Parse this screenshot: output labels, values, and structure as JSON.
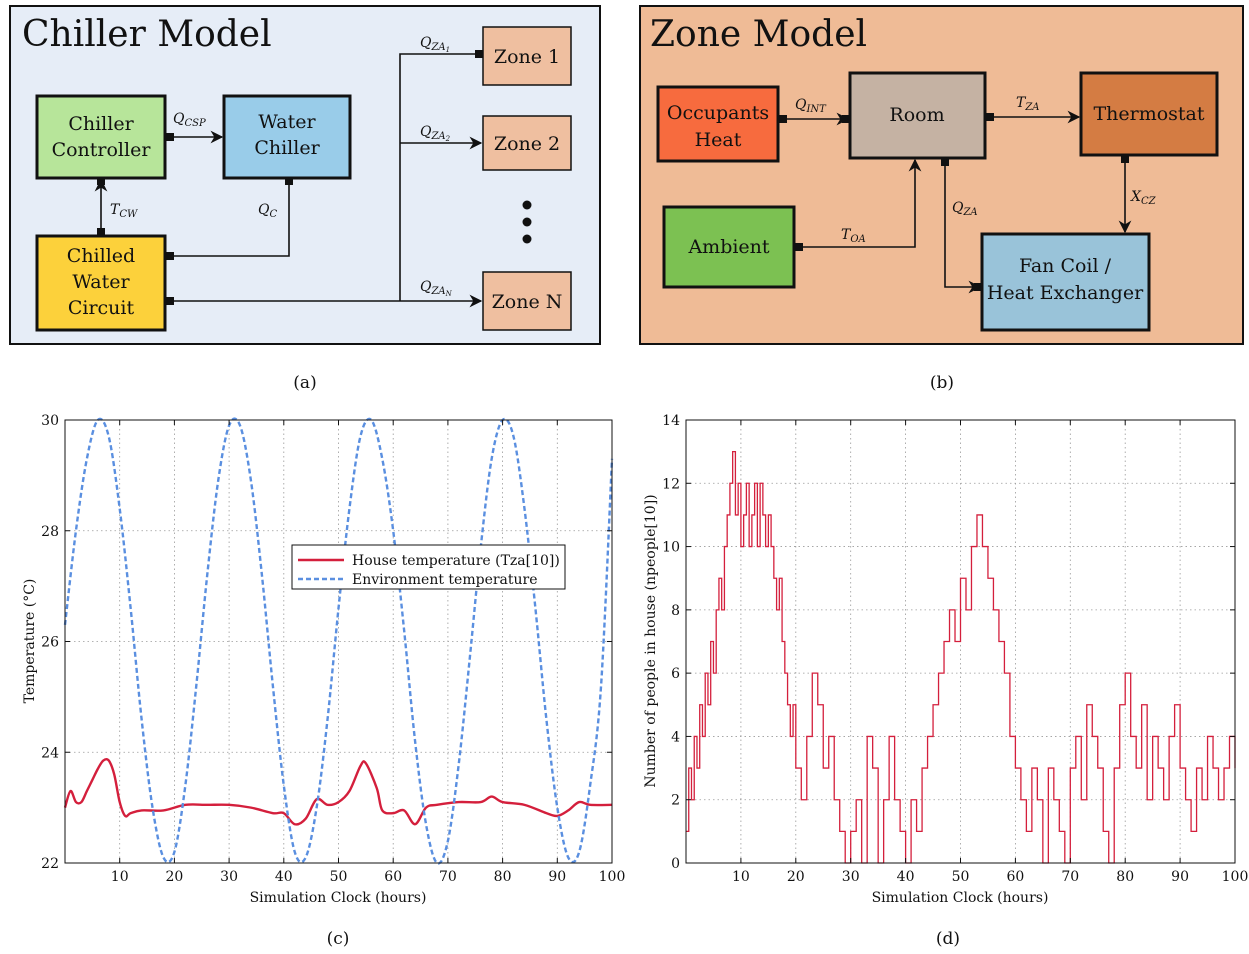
{
  "panel_a": {
    "title": "Chiller Model",
    "caption": "(a)",
    "boxes": {
      "chiller_controller": [
        "Chiller",
        "Controller"
      ],
      "water_chiller": [
        "Water",
        "Chiller"
      ],
      "chilled_water": [
        "Chilled",
        "Water",
        "Circuit"
      ],
      "zone1": "Zone 1",
      "zone2": "Zone 2",
      "zoneN": "Zone N"
    },
    "signals": {
      "q_csp": {
        "main": "Q",
        "sub": "CSP"
      },
      "t_cw": {
        "main": "T",
        "sub": "CW"
      },
      "q_c": {
        "main": "Q",
        "sub": "C"
      },
      "q_za1": {
        "main": "Q",
        "sub": "ZA",
        "subsub": "1"
      },
      "q_za2": {
        "main": "Q",
        "sub": "ZA",
        "subsub": "2"
      },
      "q_zan": {
        "main": "Q",
        "sub": "ZA",
        "subsub": "N"
      }
    }
  },
  "panel_b": {
    "title": "Zone Model",
    "caption": "(b)",
    "boxes": {
      "occupants": [
        "Occupants",
        "Heat"
      ],
      "room": "Room",
      "thermostat": "Thermostat",
      "ambient": "Ambient",
      "fancoil": [
        "Fan Coil /",
        "Heat Exchanger"
      ]
    },
    "signals": {
      "q_int": {
        "main": "Q",
        "sub": "INT"
      },
      "t_za": {
        "main": "T",
        "sub": "ZA"
      },
      "x_cz": {
        "main": "X",
        "sub": "CZ"
      },
      "q_za": {
        "main": "Q",
        "sub": "ZA"
      },
      "t_oa": {
        "main": "T",
        "sub": "OA"
      }
    }
  },
  "panel_c": {
    "caption": "(c)",
    "chart_data": {
      "type": "line",
      "xlabel": "Simulation Clock (hours)",
      "ylabel": "Temperature (°C)",
      "xlim": [
        0,
        100
      ],
      "ylim": [
        22,
        30
      ],
      "xticks": [
        "10",
        "20",
        "30",
        "40",
        "50",
        "60",
        "70",
        "80",
        "90",
        "100"
      ],
      "yticks": [
        "22",
        "24",
        "26",
        "28",
        "30"
      ],
      "grid": true,
      "legend_position": "center-right",
      "series": [
        {
          "name": "House temperature (Tza[10])",
          "color": "#d41f3c",
          "style": "solid",
          "x": [
            0,
            1,
            2,
            3,
            4,
            5,
            6,
            7,
            8,
            9,
            10,
            11,
            12,
            14,
            18,
            22,
            26,
            30,
            34,
            38,
            40,
            42,
            44,
            46,
            48,
            50,
            52,
            54,
            55,
            57,
            58,
            60,
            62,
            64,
            66,
            68,
            72,
            76,
            78,
            80,
            84,
            88,
            90,
            92,
            94,
            96,
            100
          ],
          "y": [
            23.0,
            23.3,
            23.1,
            23.1,
            23.3,
            23.5,
            23.7,
            23.85,
            23.85,
            23.6,
            23.1,
            22.85,
            22.9,
            22.95,
            22.95,
            23.05,
            23.05,
            23.05,
            23.0,
            22.9,
            22.9,
            22.7,
            22.8,
            23.15,
            23.05,
            23.1,
            23.3,
            23.75,
            23.8,
            23.35,
            22.95,
            22.9,
            22.95,
            22.7,
            23.0,
            23.05,
            23.1,
            23.1,
            23.2,
            23.1,
            23.05,
            22.9,
            22.85,
            22.95,
            23.1,
            23.05,
            23.05
          ]
        },
        {
          "name": "Environment temperature",
          "color": "#5a8fe0",
          "style": "dashed",
          "x": [
            0,
            2,
            4,
            6,
            8,
            10,
            12,
            14,
            16,
            18,
            20,
            22,
            24,
            26,
            28,
            30,
            32,
            34,
            36,
            38,
            40,
            42,
            44,
            46,
            48,
            50,
            52,
            54,
            56,
            58,
            60,
            62,
            64,
            66,
            68,
            70,
            72,
            74,
            76,
            78,
            80,
            82,
            84,
            86,
            88,
            90,
            92,
            94,
            96,
            98,
            100
          ],
          "y": [
            26.3,
            28.0,
            29.3,
            30.0,
            29.7,
            28.4,
            26.6,
            24.6,
            23.0,
            22.1,
            22.2,
            23.4,
            25.2,
            27.2,
            28.9,
            29.9,
            29.9,
            28.9,
            27.2,
            25.2,
            23.4,
            22.2,
            22.1,
            23.0,
            24.6,
            26.6,
            28.4,
            29.7,
            30.0,
            29.3,
            28.0,
            26.2,
            24.2,
            22.7,
            22.0,
            22.4,
            23.8,
            25.7,
            27.7,
            29.3,
            30.0,
            29.7,
            28.4,
            26.6,
            24.6,
            23.0,
            22.1,
            22.2,
            23.4,
            25.2,
            29.3
          ]
        }
      ]
    }
  },
  "panel_d": {
    "caption": "(d)",
    "chart_data": {
      "type": "line",
      "xlabel": "Simulation Clock (hours)",
      "ylabel": "Number of people in house (npeople[10])",
      "xlim": [
        0,
        100
      ],
      "ylim": [
        0,
        14
      ],
      "xticks": [
        "10",
        "20",
        "30",
        "40",
        "50",
        "60",
        "70",
        "80",
        "90",
        "100"
      ],
      "yticks": [
        "0",
        "2",
        "4",
        "6",
        "8",
        "10",
        "12",
        "14"
      ],
      "grid": true,
      "series": [
        {
          "name": "",
          "color": "#d41f3c",
          "style": "solid",
          "x": [
            0,
            0.5,
            1,
            1.5,
            2,
            2.5,
            3,
            3.5,
            4,
            4.5,
            5,
            5.5,
            6,
            6.5,
            7,
            7.5,
            8,
            8.5,
            9,
            9.5,
            10,
            10.5,
            11,
            11.5,
            12,
            12.5,
            13,
            13.5,
            14,
            14.5,
            15,
            15.5,
            16,
            16.5,
            17,
            17.5,
            18,
            18.5,
            19,
            19.5,
            20,
            21,
            22,
            23,
            24,
            25,
            26,
            27,
            28,
            29,
            30,
            31,
            32,
            33,
            34,
            35,
            36,
            37,
            38,
            39,
            40,
            41,
            42,
            43,
            44,
            45,
            46,
            47,
            48,
            49,
            50,
            51,
            52,
            53,
            54,
            55,
            56,
            57,
            58,
            59,
            60,
            61,
            62,
            63,
            64,
            65,
            66,
            67,
            68,
            69,
            70,
            71,
            72,
            73,
            74,
            75,
            76,
            77,
            78,
            79,
            80,
            81,
            82,
            83,
            84,
            85,
            86,
            87,
            88,
            89,
            90,
            91,
            92,
            93,
            94,
            95,
            96,
            97,
            98,
            99,
            100
          ],
          "y": [
            1,
            3,
            2,
            4,
            3,
            5,
            4,
            6,
            5,
            7,
            6,
            8,
            9,
            8,
            10,
            11,
            12,
            13,
            11,
            12,
            10,
            11,
            12,
            10,
            11,
            12,
            10,
            12,
            11,
            10,
            11,
            10,
            9,
            8,
            9,
            7,
            6,
            5,
            4,
            5,
            3,
            2,
            4,
            6,
            5,
            3,
            4,
            2,
            1,
            0,
            1,
            2,
            0,
            4,
            3,
            0,
            2,
            4,
            2,
            1,
            0,
            2,
            1,
            3,
            4,
            5,
            6,
            7,
            8,
            7,
            9,
            8,
            10,
            11,
            10,
            9,
            8,
            7,
            6,
            4,
            3,
            2,
            1,
            3,
            2,
            0,
            3,
            2,
            1,
            0,
            3,
            4,
            2,
            5,
            4,
            3,
            1,
            0,
            3,
            5,
            6,
            4,
            3,
            5,
            2,
            4,
            3,
            2,
            4,
            5,
            3,
            2,
            1,
            3,
            2,
            4,
            3,
            2,
            3,
            4,
            3
          ]
        }
      ]
    }
  }
}
